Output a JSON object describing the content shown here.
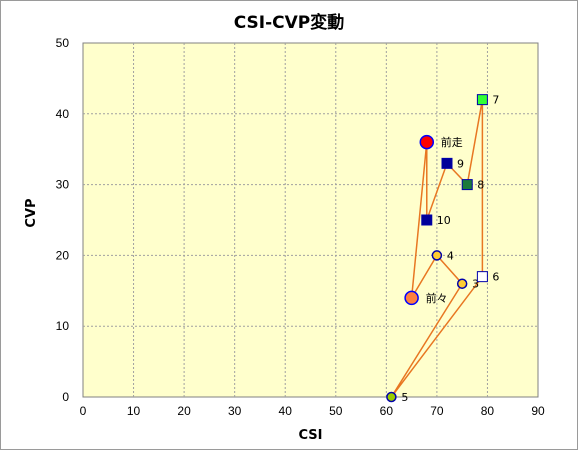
{
  "chart_data": {
    "type": "scatter",
    "title": "CSI-CVP変動",
    "xlabel": "CSI",
    "ylabel": "CVP",
    "xlim": [
      0,
      90
    ],
    "ylim": [
      0,
      50
    ],
    "xticks": [
      "0",
      "10",
      "20",
      "30",
      "40",
      "50",
      "60",
      "70",
      "80",
      "90"
    ],
    "yticks": [
      "0",
      "10",
      "20",
      "30",
      "40",
      "50"
    ],
    "grid": true,
    "plot_background": "#ffffcc",
    "line_color": "#e87722",
    "path_order": [
      "前々",
      "前走",
      "10",
      "9",
      "8",
      "7",
      "6",
      "5",
      "3",
      "4",
      "前々"
    ],
    "points": [
      {
        "label": "前走",
        "x": 68,
        "y": 36,
        "shape": "circle-large",
        "fill": "#ff0000",
        "stroke": "#0000ff"
      },
      {
        "label": "前々",
        "x": 65,
        "y": 14,
        "shape": "circle-large",
        "fill": "#ff7f3f",
        "stroke": "#0000ff"
      },
      {
        "label": "3",
        "x": 75,
        "y": 16,
        "shape": "circle",
        "fill": "#ffcc33",
        "stroke": "#0000aa"
      },
      {
        "label": "4",
        "x": 70,
        "y": 20,
        "shape": "circle",
        "fill": "#ffcc33",
        "stroke": "#0000aa"
      },
      {
        "label": "5",
        "x": 61,
        "y": 0,
        "shape": "circle",
        "fill": "#99cc00",
        "stroke": "#0000aa"
      },
      {
        "label": "6",
        "x": 79,
        "y": 17,
        "shape": "square",
        "fill": "#ffffff",
        "stroke": "#0000aa"
      },
      {
        "label": "7",
        "x": 79,
        "y": 42,
        "shape": "square",
        "fill": "#33ff33",
        "stroke": "#0000aa"
      },
      {
        "label": "8",
        "x": 76,
        "y": 30,
        "shape": "square",
        "fill": "#1a7a3a",
        "stroke": "#0000aa"
      },
      {
        "label": "9",
        "x": 72,
        "y": 33,
        "shape": "square",
        "fill": "#000099",
        "stroke": "#0000aa"
      },
      {
        "label": "10",
        "x": 68,
        "y": 25,
        "shape": "square",
        "fill": "#000099",
        "stroke": "#0000aa"
      }
    ]
  }
}
